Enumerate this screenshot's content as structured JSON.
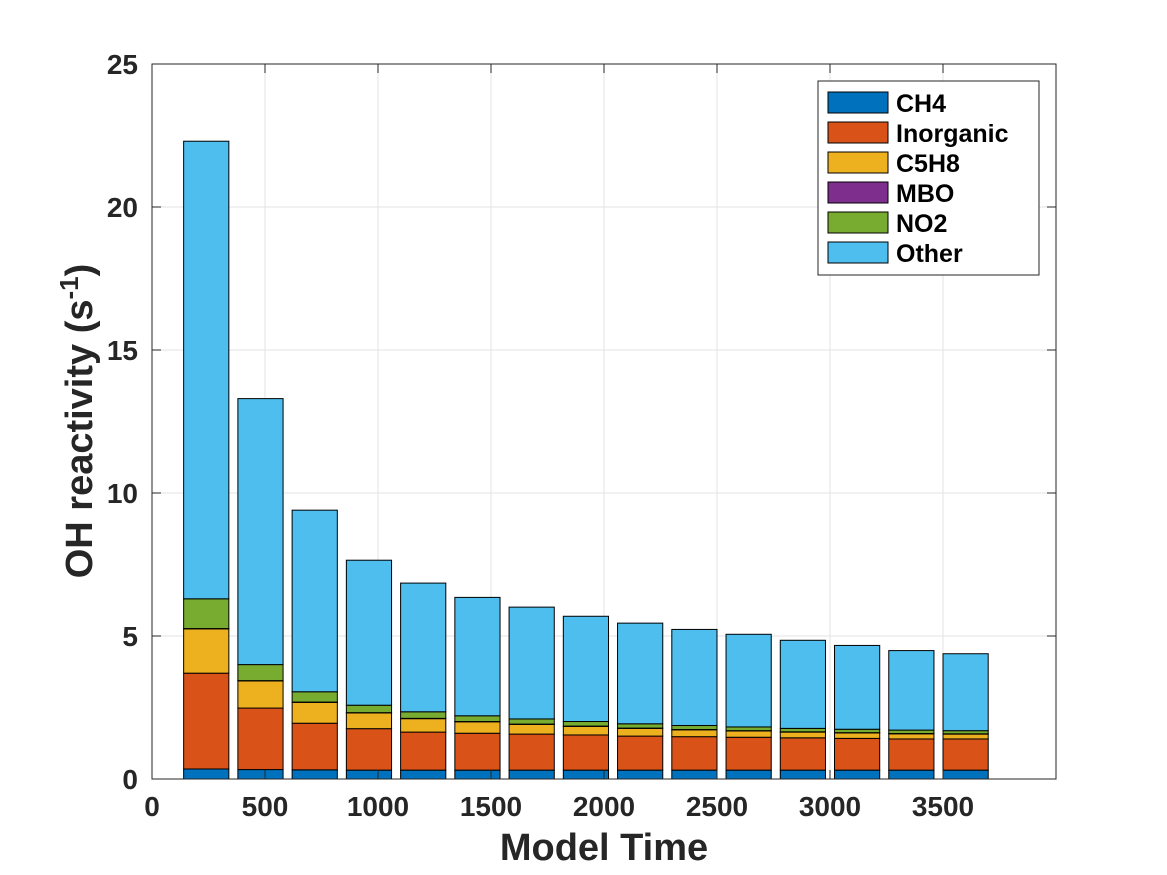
{
  "chart_data": {
    "type": "bar",
    "stacked": true,
    "title": "",
    "xlabel": "Model Time",
    "ylabel_main": "OH reactivity (s",
    "ylabel_sup": "-1",
    "ylabel_close": ")",
    "xlim": [
      0,
      4000
    ],
    "ylim": [
      0,
      25
    ],
    "xticks": [
      "0",
      "500",
      "1000",
      "1500",
      "2000",
      "2500",
      "3000",
      "3500"
    ],
    "xtick_values": [
      0,
      500,
      1000,
      1500,
      2000,
      2500,
      3000,
      3500
    ],
    "yticks": [
      "0",
      "5",
      "10",
      "15",
      "20",
      "25"
    ],
    "ytick_values": [
      0,
      5,
      10,
      15,
      20,
      25
    ],
    "grid": true,
    "legend_position": "top-right",
    "bar_width": 200,
    "x": [
      240,
      480,
      720,
      960,
      1200,
      1440,
      1680,
      1920,
      2160,
      2400,
      2640,
      2880,
      3120,
      3360,
      3600
    ],
    "series": [
      {
        "name": "CH4",
        "color": "#0072BD",
        "values": [
          0.35,
          0.33,
          0.32,
          0.31,
          0.31,
          0.31,
          0.31,
          0.31,
          0.31,
          0.31,
          0.31,
          0.31,
          0.31,
          0.31,
          0.31
        ]
      },
      {
        "name": "Inorganic",
        "color": "#D95319",
        "values": [
          3.35,
          2.15,
          1.63,
          1.45,
          1.33,
          1.29,
          1.26,
          1.23,
          1.19,
          1.17,
          1.15,
          1.13,
          1.11,
          1.09,
          1.09
        ]
      },
      {
        "name": "C5H8",
        "color": "#EDB120",
        "values": [
          1.55,
          0.95,
          0.73,
          0.55,
          0.47,
          0.4,
          0.34,
          0.3,
          0.27,
          0.24,
          0.22,
          0.2,
          0.19,
          0.18,
          0.17
        ]
      },
      {
        "name": "MBO",
        "color": "#7E2F8E",
        "values": [
          0.01,
          0.01,
          0.01,
          0.01,
          0.01,
          0.01,
          0.01,
          0.01,
          0.01,
          0.01,
          0.01,
          0.01,
          0.01,
          0.01,
          0.01
        ]
      },
      {
        "name": "NO2",
        "color": "#77AC30",
        "values": [
          1.04,
          0.56,
          0.36,
          0.26,
          0.23,
          0.2,
          0.18,
          0.16,
          0.15,
          0.14,
          0.13,
          0.12,
          0.12,
          0.12,
          0.11
        ]
      },
      {
        "name": "Other",
        "color": "#4DBEEE",
        "values": [
          16.0,
          9.3,
          6.35,
          5.07,
          4.5,
          4.14,
          3.91,
          3.68,
          3.52,
          3.36,
          3.24,
          3.08,
          2.93,
          2.78,
          2.69
        ]
      }
    ]
  }
}
